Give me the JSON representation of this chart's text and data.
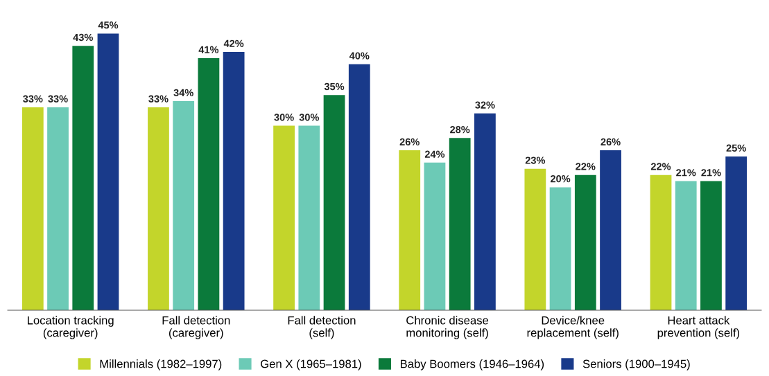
{
  "chart_data": {
    "type": "bar",
    "categories": [
      "Location tracking\n(caregiver)",
      "Fall detection\n(caregiver)",
      "Fall detection\n(self)",
      "Chronic disease\nmonitoring (self)",
      "Device/knee\nreplacement (self)",
      "Heart attack\nprevention (self)"
    ],
    "series": [
      {
        "name": "Millennials (1982–1997)",
        "color": "#c3d52b",
        "values": [
          33,
          33,
          30,
          26,
          23,
          22
        ],
        "value_labels": [
          "33%",
          "33%",
          "30%",
          "26%",
          "23%",
          "22%"
        ]
      },
      {
        "name": "Gen X (1965–1981)",
        "color": "#6ccab6",
        "values": [
          33,
          34,
          30,
          24,
          20,
          21
        ],
        "value_labels": [
          "33%",
          "34%",
          "30%",
          "24%",
          "20%",
          "21%"
        ]
      },
      {
        "name": "Baby Boomers (1946–1964)",
        "color": "#0b7a3b",
        "values": [
          43,
          41,
          35,
          28,
          22,
          21
        ],
        "value_labels": [
          "43%",
          "41%",
          "35%",
          "28%",
          "22%",
          "21%"
        ]
      },
      {
        "name": "Seniors (1900–1945)",
        "color": "#193a8a",
        "values": [
          45,
          42,
          40,
          32,
          26,
          25
        ],
        "value_labels": [
          "45%",
          "42%",
          "40%",
          "32%",
          "26%",
          "25%"
        ]
      }
    ],
    "legend": "bottom",
    "grid": false
  }
}
